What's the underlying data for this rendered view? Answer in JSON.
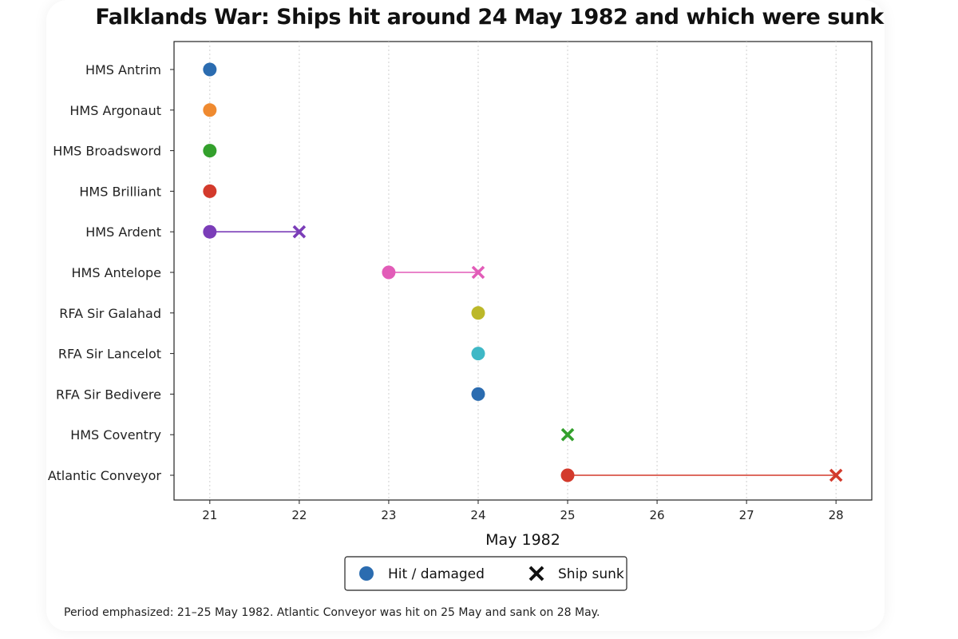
{
  "chart_data": {
    "type": "scatter",
    "title": "Falklands War: Ships hit around 24 May 1982 and which were sunk",
    "xlabel": "May 1982",
    "ylabel": "",
    "xlim": [
      20.6,
      28.4
    ],
    "xticks": [
      21,
      22,
      23,
      24,
      25,
      26,
      27,
      28
    ],
    "grid": "vertical dotted",
    "categories": [
      "HMS Antrim",
      "HMS Argonaut",
      "HMS Broadsword",
      "HMS Brilliant",
      "HMS Ardent",
      "HMS Antelope",
      "RFA Sir Galahad",
      "RFA Sir Lancelot",
      "RFA Sir Bedivere",
      "HMS Coventry",
      "Atlantic Conveyor"
    ],
    "ships": [
      {
        "name": "HMS Antrim",
        "hit": 21,
        "sunk": null,
        "color": "#2b6cb0"
      },
      {
        "name": "HMS Argonaut",
        "hit": 21,
        "sunk": null,
        "color": "#ef8a30"
      },
      {
        "name": "HMS Broadsword",
        "hit": 21,
        "sunk": null,
        "color": "#33a02c"
      },
      {
        "name": "HMS Brilliant",
        "hit": 21,
        "sunk": null,
        "color": "#d33a2c"
      },
      {
        "name": "HMS Ardent",
        "hit": 21,
        "sunk": 22,
        "color": "#7b3db8"
      },
      {
        "name": "HMS Antelope",
        "hit": 23,
        "sunk": 24,
        "color": "#e25cb8"
      },
      {
        "name": "RFA Sir Galahad",
        "hit": 24,
        "sunk": null,
        "color": "#bcb829"
      },
      {
        "name": "RFA Sir Lancelot",
        "hit": 24,
        "sunk": null,
        "color": "#3fb8c6"
      },
      {
        "name": "RFA Sir Bedivere",
        "hit": 24,
        "sunk": null,
        "color": "#2b6cb0"
      },
      {
        "name": "HMS Coventry",
        "hit": null,
        "sunk": 25,
        "color": "#33a02c"
      },
      {
        "name": "Atlantic Conveyor",
        "hit": 25,
        "sunk": 28,
        "color": "#d33a2c"
      }
    ],
    "legend": {
      "placement": "bottom-center",
      "items": [
        {
          "label": "Hit / damaged",
          "marker": "circle",
          "color": "#2b6cb0"
        },
        {
          "label": "Ship sunk",
          "marker": "x",
          "color": "#111111"
        }
      ]
    }
  },
  "footnote": "Period emphasized: 21–25 May 1982. Atlantic Conveyor was hit on 25 May and sank on 28 May."
}
